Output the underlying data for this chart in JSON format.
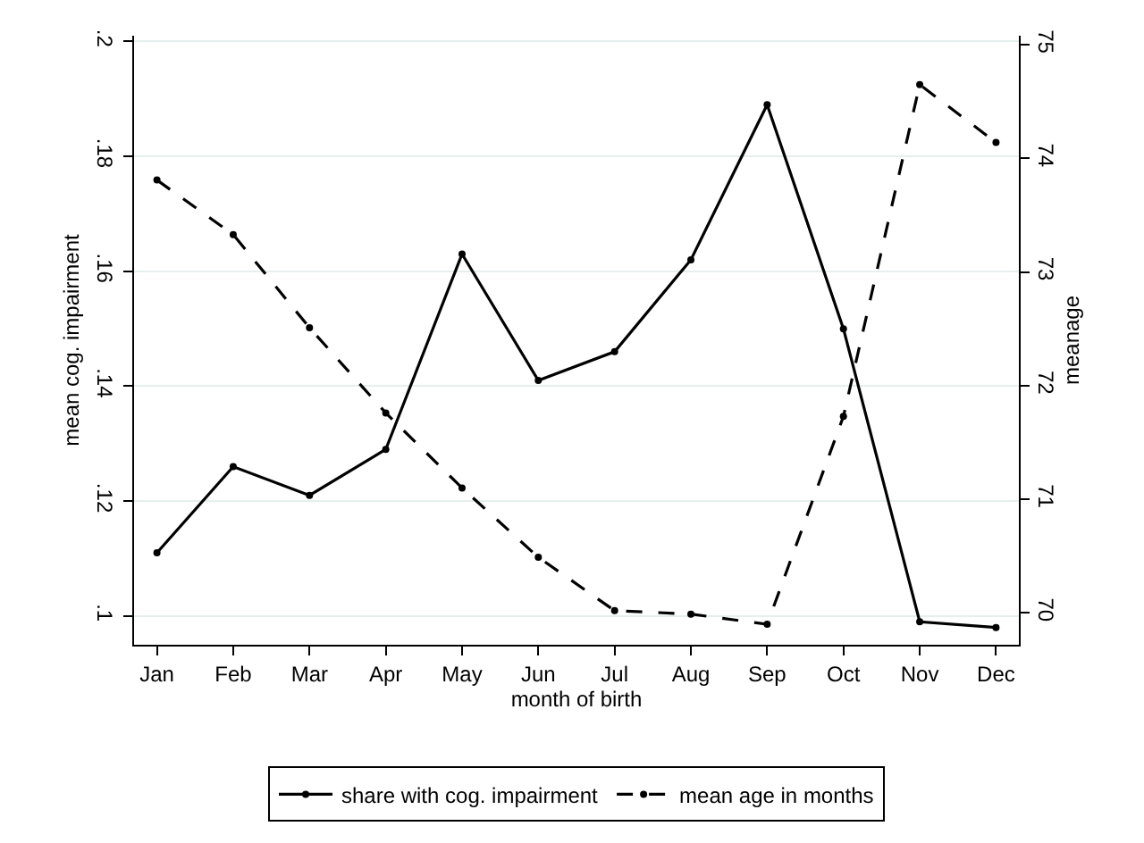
{
  "chart_data": {
    "type": "line",
    "xlabel": "month of birth",
    "ylabel": "mean cog. impairment",
    "y2label": "meanage",
    "categories": [
      "Jan",
      "Feb",
      "Mar",
      "Apr",
      "May",
      "Jun",
      "Jul",
      "Aug",
      "Sep",
      "Oct",
      "Nov",
      "Dec"
    ],
    "series": [
      {
        "name": "share with cog. impairment",
        "color": "#000000",
        "line_style": "solid",
        "values": [
          0.111,
          0.126,
          0.121,
          0.129,
          0.163,
          0.141,
          0.146,
          0.162,
          0.189,
          0.15,
          0.099,
          0.098
        ]
      },
      {
        "name": "mean age in months",
        "color": "#000000",
        "line_style": "dashed",
        "axis": "y2",
        "values": [
          73.81,
          73.33,
          72.51,
          71.76,
          71.1,
          70.49,
          70.02,
          69.99,
          69.9,
          71.73,
          74.65,
          74.14
        ]
      }
    ],
    "ylim": [
      0.095,
      0.201
    ],
    "yticks": [
      {
        "value": 0.1,
        "label": ".1"
      },
      {
        "value": 0.12,
        "label": ".12"
      },
      {
        "value": 0.14,
        "label": ".14"
      },
      {
        "value": 0.16,
        "label": ".16"
      },
      {
        "value": 0.18,
        "label": ".18"
      },
      {
        "value": 0.2,
        "label": ".2"
      }
    ],
    "y2lim": [
      69.72,
      75.08
    ],
    "y2ticks": [
      70,
      71,
      72,
      73,
      74,
      75
    ],
    "grid": "y",
    "legend": "bottom",
    "marker": "circle"
  }
}
